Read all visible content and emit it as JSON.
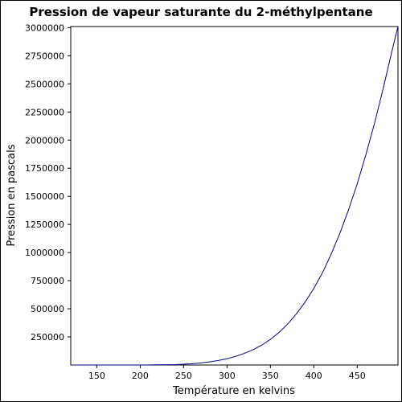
{
  "chart_data": {
    "type": "line",
    "title": "Pression de vapeur saturante du 2-méthylpentane",
    "xlabel": "Température en kelvins",
    "ylabel": "Pression en pascals",
    "xlim": [
      120,
      497
    ],
    "ylim": [
      0,
      3010000
    ],
    "x_ticks": [
      150,
      200,
      250,
      300,
      350,
      400,
      450
    ],
    "y_ticks": [
      250000,
      500000,
      750000,
      1000000,
      1250000,
      1500000,
      1750000,
      2000000,
      2250000,
      2500000,
      2750000,
      3000000
    ],
    "grid": false,
    "line_color": "#00008b",
    "series": [
      {
        "x": [
          120,
          150,
          200,
          220,
          240,
          250,
          260,
          270,
          280,
          290,
          300,
          310,
          320,
          330,
          340,
          350,
          360,
          370,
          380,
          390,
          400,
          410,
          420,
          430,
          440,
          450,
          460,
          470,
          480,
          490,
          497
        ],
        "values": [
          0,
          0,
          0,
          2000,
          4000,
          7000,
          12000,
          19000,
          28000,
          40000,
          56000,
          77000,
          103000,
          136000,
          177000,
          228000,
          290000,
          365000,
          455000,
          560000,
          680000,
          820000,
          985000,
          1170000,
          1380000,
          1610000,
          1870000,
          2150000,
          2460000,
          2790000,
          3010000
        ]
      }
    ]
  }
}
